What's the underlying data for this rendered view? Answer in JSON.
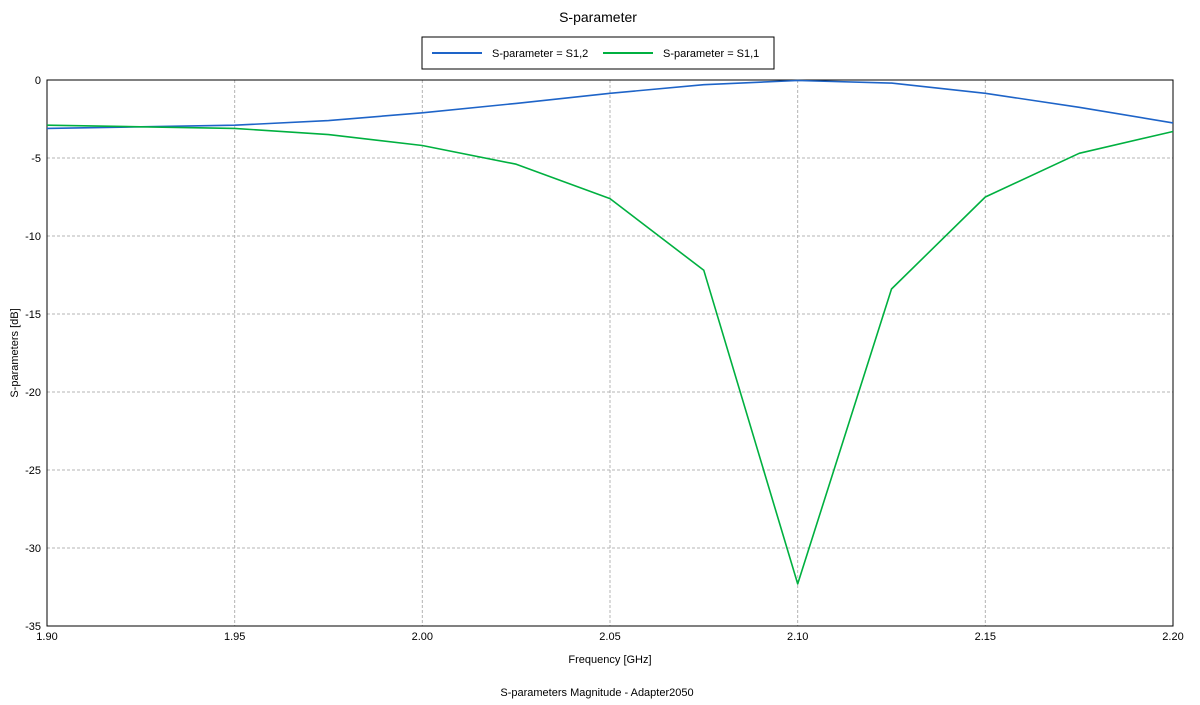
{
  "chart_data": {
    "type": "line",
    "title": "S-parameter",
    "caption": "S-parameters Magnitude - Adapter2050",
    "xlabel": "Frequency [GHz]",
    "ylabel": "S-parameters [dB]",
    "xlim": [
      1.9,
      2.2
    ],
    "ylim": [
      -35,
      0
    ],
    "xticks": [
      "1.90",
      "1.95",
      "2.00",
      "2.05",
      "2.10",
      "2.15",
      "2.20"
    ],
    "yticks": [
      "0",
      "-5",
      "-10",
      "-15",
      "-20",
      "-25",
      "-30",
      "-35"
    ],
    "grid": true,
    "legend_position": "top-center",
    "series": [
      {
        "name": "S-parameter = S1,2",
        "color": "#1e64c8",
        "x": [
          1.9,
          1.925,
          1.95,
          1.975,
          2.0,
          2.025,
          2.05,
          2.075,
          2.1,
          2.125,
          2.15,
          2.175,
          2.2
        ],
        "y": [
          -3.1,
          -3.0,
          -2.9,
          -2.6,
          -2.1,
          -1.5,
          -0.85,
          -0.3,
          -0.03,
          -0.2,
          -0.85,
          -1.75,
          -2.75
        ]
      },
      {
        "name": "S-parameter = S1,1",
        "color": "#00b040",
        "x": [
          1.9,
          1.925,
          1.95,
          1.975,
          2.0,
          2.025,
          2.05,
          2.075,
          2.1,
          2.125,
          2.15,
          2.175,
          2.2
        ],
        "y": [
          -2.9,
          -3.0,
          -3.1,
          -3.5,
          -4.2,
          -5.4,
          -7.6,
          -12.2,
          -32.3,
          -13.4,
          -7.5,
          -4.7,
          -3.3
        ]
      }
    ]
  }
}
